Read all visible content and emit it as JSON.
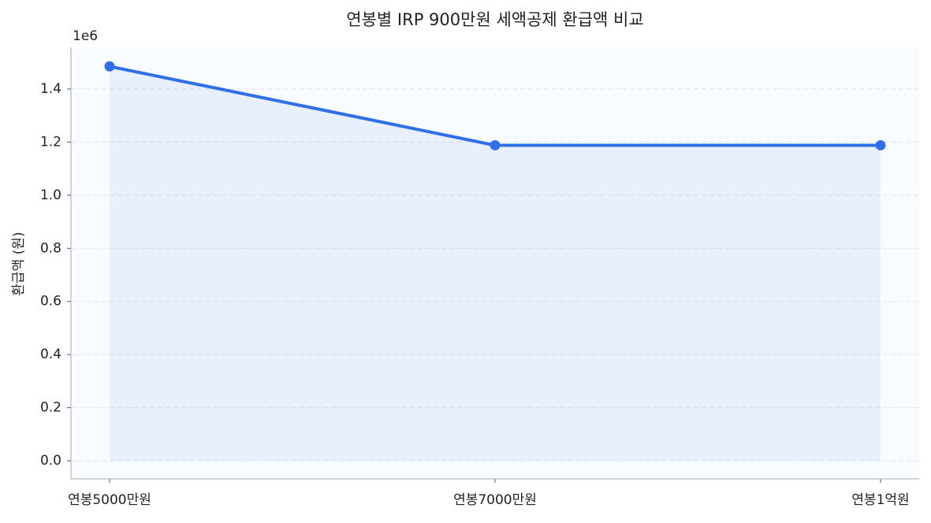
{
  "chart_data": {
    "type": "line",
    "title": "연봉별 IRP 900만원 세액공제 환급액 비교",
    "y_label": "환급액 (원)",
    "y_offset_label": "1e6",
    "categories": [
      "연봉5000만원",
      "연봉7000만원",
      "연봉1억원"
    ],
    "series": [
      {
        "color": "#2f6fe8",
        "values": [
          1485000,
          1188000,
          1188000
        ]
      }
    ],
    "fill": true,
    "ylim": [
      -68000,
      1557000
    ],
    "yticks": [
      {
        "value": 0,
        "label": "0.0"
      },
      {
        "value": 200000,
        "label": "0.2"
      },
      {
        "value": 400000,
        "label": "0.4"
      },
      {
        "value": 600000,
        "label": "0.6"
      },
      {
        "value": 800000,
        "label": "0.8"
      },
      {
        "value": 1000000,
        "label": "1.0"
      },
      {
        "value": 1200000,
        "label": "1.2"
      },
      {
        "value": 1400000,
        "label": "1.4"
      }
    ],
    "grid": true
  }
}
